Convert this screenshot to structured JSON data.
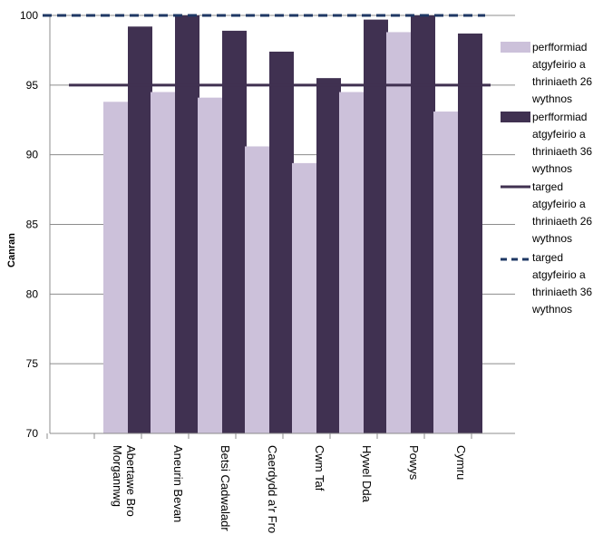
{
  "chart_data": {
    "type": "bar",
    "ylabel": "Canran",
    "ylim": [
      70,
      100
    ],
    "yticks": [
      70,
      75,
      80,
      85,
      90,
      95,
      100
    ],
    "grid": true,
    "legend_position": "right",
    "categories": [
      [
        "Abertawe Bro",
        "Morgannwg"
      ],
      [
        "Aneurin Bevan"
      ],
      [
        "Betsi Cadwaladr"
      ],
      [
        "Caerdydd a'r Fro"
      ],
      [
        "Cwm Taf"
      ],
      [
        "Hywel Dda"
      ],
      [
        "Powys"
      ],
      [
        "Cymru"
      ]
    ],
    "series": [
      {
        "name": [
          "perfformiad",
          "atgyfeirio a",
          "thriniaeth 26",
          "wythnos"
        ],
        "type": "bar",
        "color": "#ccc1da",
        "values": [
          93.8,
          94.5,
          94.1,
          90.6,
          89.4,
          94.5,
          98.8,
          93.1
        ]
      },
      {
        "name": [
          "perfformiad",
          "atgyfeirio a",
          "thriniaeth 36",
          "wythnos"
        ],
        "type": "bar",
        "color": "#403151",
        "values": [
          99.2,
          100,
          98.9,
          97.4,
          95.5,
          99.7,
          100,
          98.7
        ]
      },
      {
        "name": [
          "targed",
          "atgyfeirio a",
          "thriniaeth 26",
          "wythnos"
        ],
        "type": "line",
        "style": "solid",
        "color": "#403151",
        "value": 95
      },
      {
        "name": [
          "targed",
          "atgyfeirio a",
          "thriniaeth 36",
          "wythnos"
        ],
        "type": "line",
        "style": "dashed",
        "color": "#1f3864",
        "value": 100
      }
    ]
  }
}
